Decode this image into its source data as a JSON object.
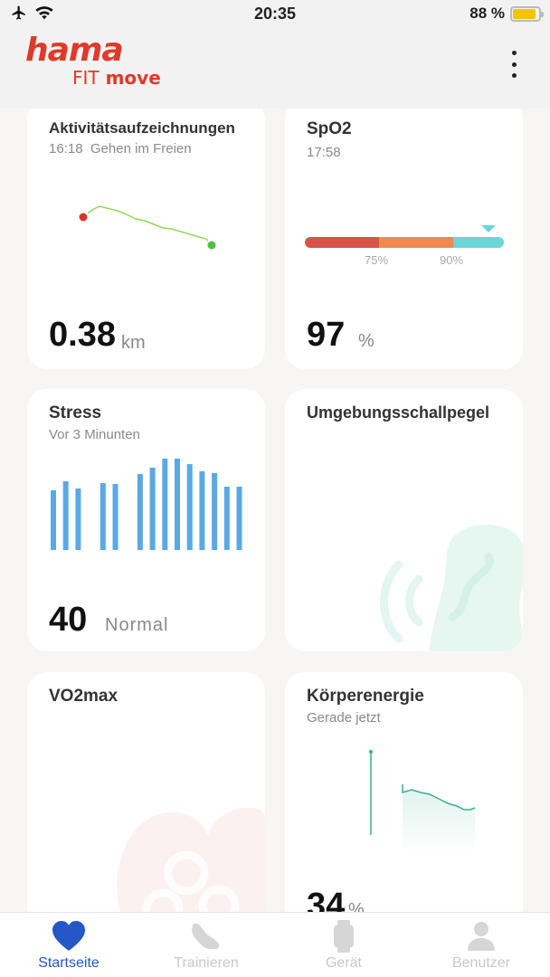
{
  "status_bar": {
    "time": "20:35",
    "battery_percent": "88 %",
    "battery_level": 0.88
  },
  "header": {
    "logo_main": "hama",
    "logo_fit": "FIT",
    "logo_move": "move"
  },
  "cards": {
    "activity": {
      "title": "Aktivitätsaufzeichnungen",
      "time": "16:18",
      "activity_type": "Gehen im Freien",
      "value": "0.38",
      "unit": "km"
    },
    "spo2": {
      "title": "SpO2",
      "time": "17:58",
      "tick_75": "75%",
      "tick_90": "90%",
      "value": "97",
      "unit": "%",
      "segment_colors": [
        "#d9534a",
        "#f0894f",
        "#6ad6d6"
      ]
    },
    "stress": {
      "title": "Stress",
      "subtitle": "Vor 3 Minunten",
      "value": "40",
      "level": "Normal",
      "bar_color": "#5aa9e6"
    },
    "noise": {
      "title": "Umgebungsschallpegel"
    },
    "vo2max": {
      "title": "VO2max"
    },
    "energy": {
      "title": "Körperenergie",
      "subtitle": "Gerade jetzt",
      "value": "34",
      "unit": "%",
      "line_color": "#3bb08f"
    }
  },
  "tabs": [
    {
      "label": "Startseite",
      "icon": "heart-icon",
      "active": true
    },
    {
      "label": "Trainieren",
      "icon": "shoe-icon",
      "active": false
    },
    {
      "label": "Gerät",
      "icon": "watch-icon",
      "active": false
    },
    {
      "label": "Benutzer",
      "icon": "user-icon",
      "active": false
    }
  ],
  "colors": {
    "accent": "#2557c7",
    "brand": "#e03a28"
  }
}
